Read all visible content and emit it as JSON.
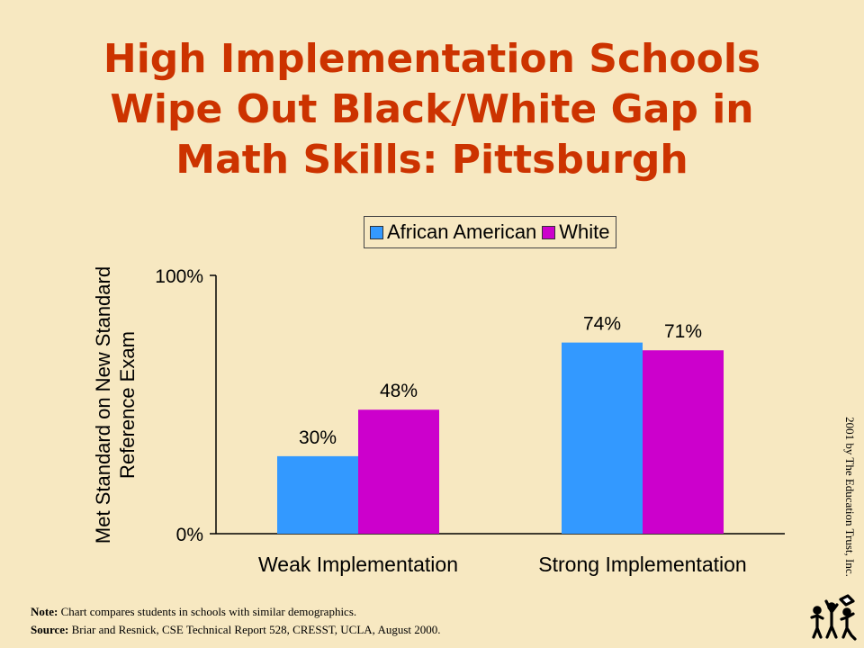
{
  "title_lines": [
    "High Implementation Schools",
    "Wipe Out Black/White Gap in",
    "Math Skills: Pittsburgh"
  ],
  "copyright": "2001 by The Education Trust, Inc.",
  "footer": {
    "note_label": "Note:",
    "note_text": " Chart compares students in schools with similar  demographics.",
    "source_label": "Source:",
    "source_text": " Briar and Resnick, CSE Technical Report 528, CRESST, UCLA, August 2000."
  },
  "logo": {
    "icon": "education-trust-figures-logo"
  },
  "colors": {
    "series_0": "#3399ff",
    "series_1": "#cc00cc",
    "title": "#cc3300",
    "background": "#f7e8c1"
  },
  "chart_data": {
    "type": "bar",
    "title": "High Implementation Schools Wipe Out Black/White Gap in Math Skills: Pittsburgh",
    "categories": [
      "Weak Implementation",
      "Strong Implementation"
    ],
    "series": [
      {
        "name": "African American",
        "values": [
          30,
          74
        ],
        "labels": [
          "30%",
          "74%"
        ]
      },
      {
        "name": "White",
        "values": [
          48,
          71
        ],
        "labels": [
          "48%",
          "71%"
        ]
      }
    ],
    "ylabel_lines": [
      "Met Standard on New Standard",
      "Reference Exam"
    ],
    "ylim": [
      0,
      100
    ],
    "yticks": [
      0,
      100
    ],
    "ytick_labels": [
      "0%",
      "100%"
    ],
    "grid": false,
    "legend_position": "top"
  }
}
